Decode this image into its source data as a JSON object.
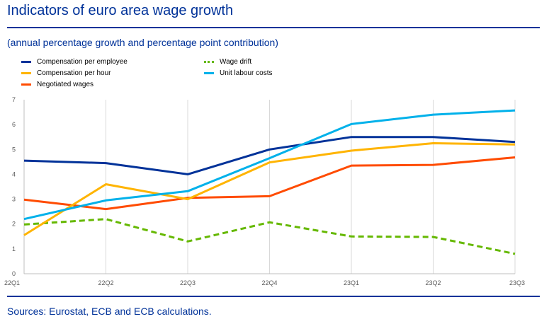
{
  "title": "Indicators of euro area wage growth",
  "subtitle": "(annual percentage growth and percentage point contribution)",
  "sources": "Sources: Eurostat, ECB and ECB calculations.",
  "colors": {
    "title": "#003299",
    "compensation_per_employee": "#003299",
    "compensation_per_hour": "#FFB400",
    "negotiated_wages": "#FF4B00",
    "wage_drift": "#65B800",
    "unit_labour_costs": "#00B1EA",
    "gridline": "#d9d9d9",
    "axis": "#bfbfbf",
    "tick_text": "#595959"
  },
  "chart_data": {
    "type": "line",
    "title": "Indicators of euro area wage growth",
    "subtitle": "(annual percentage growth and percentage point contribution)",
    "xlabel": "",
    "ylabel": "",
    "categories": [
      "22Q1",
      "22Q2",
      "22Q3",
      "22Q4",
      "23Q1",
      "23Q2",
      "23Q3"
    ],
    "ylim": [
      0,
      7
    ],
    "yticks": [
      0,
      1,
      2,
      3,
      4,
      5,
      6,
      7
    ],
    "grid": "vertical",
    "legend_position": "top-left",
    "series": [
      {
        "name": "Compensation per employee",
        "color": "#003299",
        "style": "solid",
        "values": [
          4.55,
          4.45,
          4.0,
          5.0,
          5.5,
          5.5,
          5.3
        ]
      },
      {
        "name": "Compensation per hour",
        "color": "#FFB400",
        "style": "solid",
        "values": [
          1.55,
          3.6,
          3.0,
          4.48,
          4.95,
          5.25,
          5.2
        ]
      },
      {
        "name": "Negotiated wages",
        "color": "#FF4B00",
        "style": "solid",
        "values": [
          2.98,
          2.6,
          3.05,
          3.12,
          4.35,
          4.38,
          4.68
        ]
      },
      {
        "name": "Wage drift",
        "color": "#65B800",
        "style": "dashed",
        "values": [
          1.98,
          2.2,
          1.3,
          2.07,
          1.5,
          1.48,
          0.8
        ]
      },
      {
        "name": "Unit labour costs",
        "color": "#00B1EA",
        "style": "solid",
        "values": [
          2.2,
          2.95,
          3.32,
          4.65,
          6.02,
          6.4,
          6.57
        ]
      }
    ]
  }
}
